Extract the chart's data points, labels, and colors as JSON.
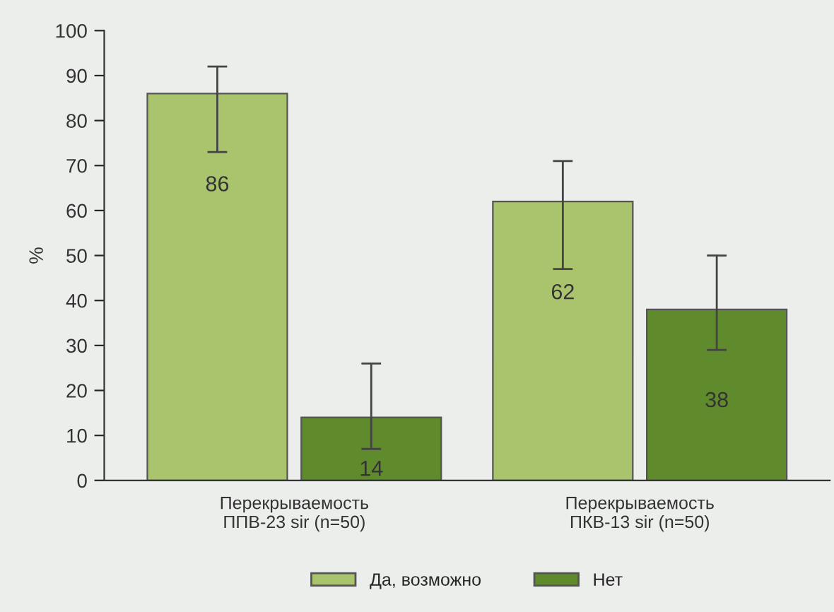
{
  "chart_data": {
    "type": "bar",
    "ylabel": "%",
    "categories": [
      "Перекрываемость\nППВ-23 sir (n=50)",
      "Перекрываемость\nПКВ-13 sir (n=50)"
    ],
    "series": [
      {
        "name": "Да, возможно",
        "color": "#a9c46c",
        "values": [
          86,
          62
        ],
        "errors": [
          [
            73,
            92
          ],
          [
            47,
            71
          ]
        ]
      },
      {
        "name": "Нет",
        "color": "#5f8b2c",
        "values": [
          14,
          38
        ],
        "errors": [
          [
            7,
            26
          ],
          [
            29,
            50
          ]
        ]
      }
    ],
    "ylim": [
      0,
      100
    ],
    "yticks": [
      0,
      10,
      20,
      30,
      40,
      50,
      60,
      70,
      80,
      90,
      100
    ],
    "data_labels": true,
    "legend": "bottom",
    "grid": false
  }
}
